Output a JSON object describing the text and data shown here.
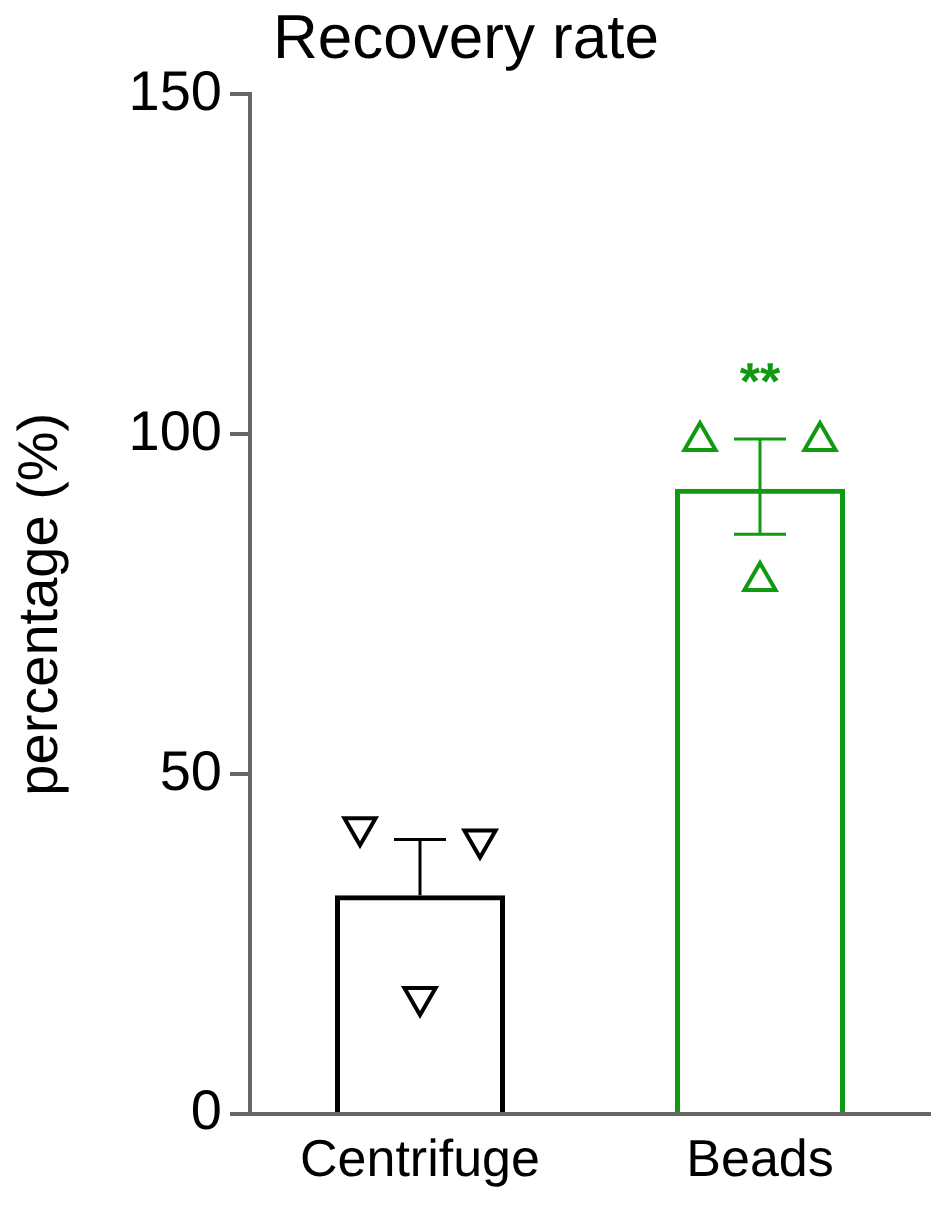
{
  "chart_data": {
    "type": "bar",
    "title": "Recovery rate",
    "ylabel": "percentage (%)",
    "categories": [
      "Centrifuge",
      "Beads"
    ],
    "series": [
      {
        "values": [
          32.2,
          92.0
        ],
        "colors": [
          "#000000",
          "#119911"
        ],
        "errors": [
          [
            32.2,
            40.4
          ],
          [
            85.3,
            99.3
          ]
        ]
      },
      {
        "type": "scatter",
        "x": [
          "Centrifuge",
          "Centrifuge",
          "Centrifuge"
        ],
        "values": [
          42.2,
          17.2,
          40.4
        ],
        "color": "#000000",
        "marker": "triangle-down"
      },
      {
        "type": "scatter",
        "x": [
          "Beads",
          "Beads",
          "Beads"
        ],
        "values": [
          99.0,
          78.4,
          99.0
        ],
        "color": "#119911",
        "marker": "triangle"
      }
    ],
    "annotations": [
      "**"
    ],
    "ylim": [
      0,
      150
    ],
    "yticks": [
      0,
      50,
      100,
      150
    ],
    "grid": false,
    "legend": false
  }
}
